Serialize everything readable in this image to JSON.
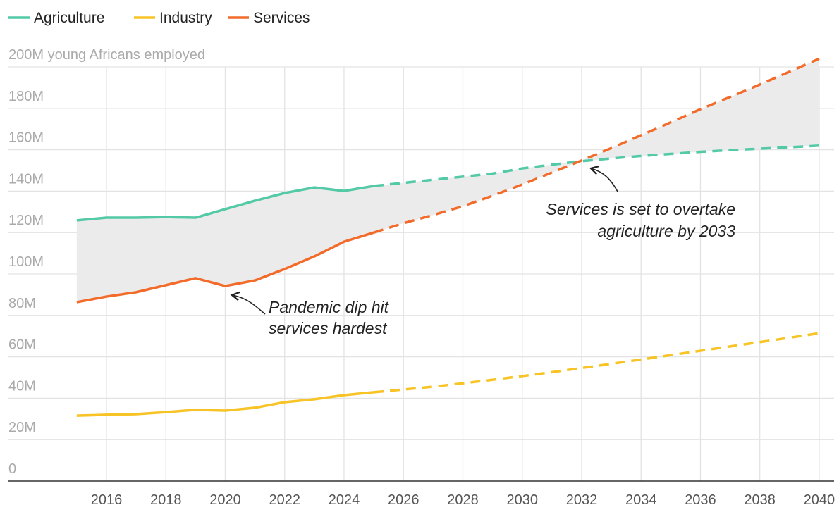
{
  "chart_data": {
    "type": "line",
    "x": [
      2015,
      2016,
      2017,
      2018,
      2019,
      2020,
      2021,
      2022,
      2023,
      2024,
      2025,
      2026,
      2027,
      2028,
      2029,
      2030,
      2031,
      2032,
      2033,
      2034,
      2035,
      2036,
      2037,
      2038,
      2039,
      2040
    ],
    "series": [
      {
        "name": "Agriculture",
        "color": "#53c9a6",
        "values": [
          125.9,
          127.2,
          127.2,
          127.5,
          127.2,
          131.3,
          135.4,
          139.1,
          141.8,
          140.1,
          142.5,
          144,
          145.5,
          147,
          148.5,
          151,
          152.8,
          154.5,
          155.8,
          157,
          158,
          159,
          159.8,
          160.5,
          161.2,
          162
        ]
      },
      {
        "name": "Industry",
        "color": "#f7c325",
        "values": [
          31.6,
          32,
          32.3,
          33.3,
          34.4,
          34,
          35.4,
          38.1,
          39.5,
          41.5,
          42.9,
          44.2,
          45.6,
          47.2,
          48.9,
          50.7,
          52.6,
          54.6,
          56.6,
          58.7,
          60.8,
          62.9,
          65,
          67.1,
          69.2,
          71.4
        ]
      },
      {
        "name": "Services",
        "color": "#f26b2b",
        "values": [
          86.4,
          89.1,
          91.2,
          94.6,
          98,
          94.2,
          96.9,
          102.4,
          108.5,
          115.6,
          120,
          124.5,
          128.5,
          132.7,
          137.8,
          143.2,
          149,
          154.8,
          160.8,
          167,
          173.2,
          179.6,
          185.5,
          191.5,
          197.7,
          204
        ]
      }
    ],
    "dashed_from": 2025,
    "shade_between": [
      0,
      2
    ],
    "xlim": [
      2012.7,
      2040.5
    ],
    "xticks": [
      2016,
      2018,
      2020,
      2022,
      2024,
      2026,
      2028,
      2030,
      2032,
      2034,
      2036,
      2038,
      2040
    ],
    "ylim": [
      0,
      205
    ],
    "yticks": [
      0,
      {
        "value": 20,
        "label": "20M"
      },
      {
        "value": 40,
        "label": "40M"
      },
      {
        "value": 60,
        "label": "60M"
      },
      {
        "value": 80,
        "label": "80M"
      },
      {
        "value": 100,
        "label": "100M"
      },
      {
        "value": 120,
        "label": "120M"
      },
      {
        "value": 140,
        "label": "140M"
      },
      {
        "value": 160,
        "label": "160M"
      },
      {
        "value": 180,
        "label": "180M"
      },
      {
        "value": 200,
        "label": "200M young Africans employed"
      }
    ],
    "grid": true,
    "annotations": [
      {
        "lines": [
          "Pandemic dip hit",
          "services hardest"
        ]
      },
      {
        "lines": [
          "Services is set to overtake",
          "agriculture by 2033"
        ]
      }
    ]
  }
}
